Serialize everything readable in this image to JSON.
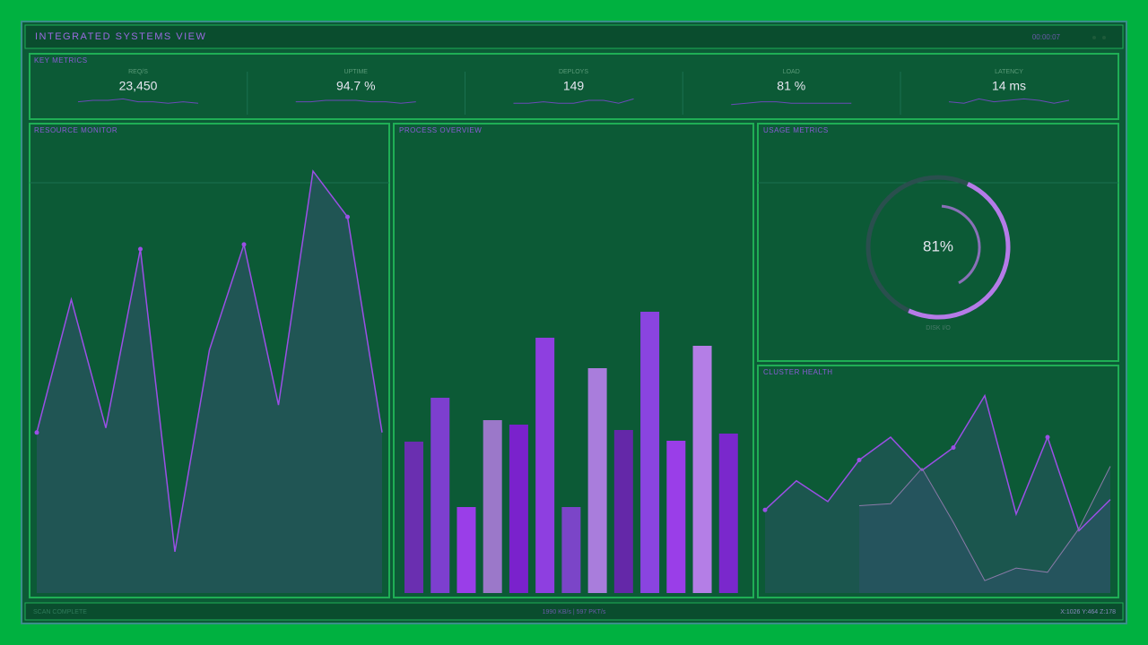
{
  "header": {
    "title": "INTEGRATED SYSTEMS VIEW",
    "clock": "00:00:07"
  },
  "metrics": {
    "title": "KEY METRICS",
    "spark_ylim": [
      0,
      10
    ],
    "items": [
      {
        "label": "REQ/S",
        "value": "23,450",
        "spark": [
          4,
          5,
          5,
          6,
          4,
          4,
          3,
          4,
          3
        ]
      },
      {
        "label": "UPTIME",
        "value": "94.7 %",
        "spark": [
          4,
          4,
          5,
          5,
          5,
          4,
          4,
          3,
          4
        ]
      },
      {
        "label": "DEPLOYS",
        "value": "149",
        "spark": [
          3,
          3,
          4,
          3,
          3,
          5,
          5,
          3,
          6
        ]
      },
      {
        "label": "LOAD",
        "value": "81 %",
        "spark": [
          2,
          3,
          4,
          4,
          3,
          3,
          3,
          3,
          3
        ]
      },
      {
        "label": "LATENCY",
        "value": "14 ms",
        "spark": [
          4,
          3,
          6,
          4,
          5,
          6,
          5,
          3,
          5
        ]
      }
    ]
  },
  "resource_monitor": {
    "title": "RESOURCE MONITOR",
    "chart": {
      "type": "line",
      "color": "#9b4fe6",
      "ylim": [
        0,
        100
      ],
      "values": [
        35,
        64,
        36,
        75,
        9,
        53,
        76,
        41,
        92,
        82,
        35
      ]
    }
  },
  "process_overview": {
    "title": "PROCESS OVERVIEW",
    "chart": {
      "type": "bar",
      "ylim": [
        0,
        350
      ],
      "values": [
        169,
        218,
        96,
        193,
        188,
        285,
        96,
        251,
        182,
        314,
        170,
        276,
        178
      ],
      "colors": [
        "#6a2fb0",
        "#7d3fcf",
        "#9a3ee8",
        "#9b78c9",
        "#7a22cc",
        "#8e3fe0",
        "#7b45c8",
        "#a97ddc",
        "#6428a8",
        "#8a44e0",
        "#9a3ee8",
        "#b47ee6",
        "#7a28cc"
      ]
    }
  },
  "usage_metrics": {
    "title": "USAGE METRICS",
    "chart": {
      "type": "gauge",
      "ylim": [
        0,
        100
      ],
      "value": 81,
      "value_label": "81%",
      "label": "DISK I/O",
      "color": "#b57be8"
    }
  },
  "cluster_health": {
    "title": "CLUSTER HEALTH",
    "chart": {
      "type": "line",
      "ylim": [
        0,
        100
      ],
      "series": [
        {
          "color": "#9b4fe6",
          "values": [
            40,
            54,
            44,
            64,
            75,
            59,
            70,
            95,
            38,
            75,
            30,
            45
          ]
        },
        {
          "color": "#8a7aa8",
          "values": [
            null,
            null,
            null,
            42,
            43,
            60,
            34,
            6,
            12,
            10,
            31,
            61
          ]
        }
      ]
    }
  },
  "footer": {
    "status": "SCAN COMPLETE",
    "throughput": "1990 KB/s | 597 PKT/s",
    "coords": "X:1026 Y:464 Z:178"
  }
}
